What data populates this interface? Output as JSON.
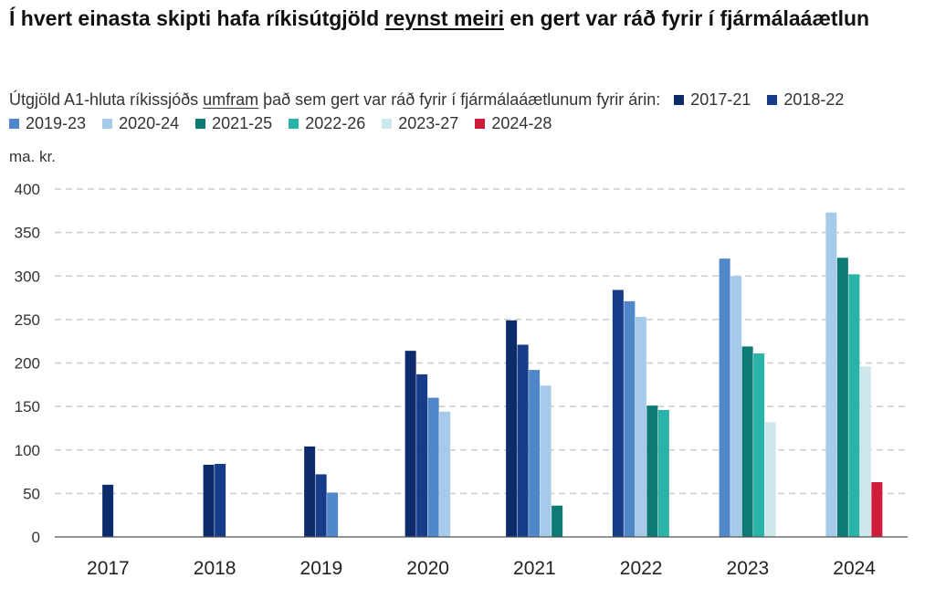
{
  "title": {
    "part1": "Í hvert einasta skipti hafa ríkisútgjöld ",
    "emph": "reynst meiri",
    "part2": " en gert var ráð fyrir í fjármálaáætlun"
  },
  "subtitle": {
    "part1": "Útgjöld A1-hluta ríkissjóðs ",
    "emph": "umfram",
    "part2": " það sem gert var ráð fyrir í fjármálaáætlunum fyrir árin:"
  },
  "chart_data": {
    "type": "bar",
    "unit_label": "ma. kr.",
    "categories": [
      "2017",
      "2018",
      "2019",
      "2020",
      "2021",
      "2022",
      "2023",
      "2024"
    ],
    "ylim": [
      0,
      400
    ],
    "yticks": [
      0,
      50,
      100,
      150,
      200,
      250,
      300,
      350,
      400
    ],
    "grid": true,
    "legend_position": "top",
    "series": [
      {
        "name": "2017-21",
        "color": "#0d2a6b",
        "values": [
          60,
          83,
          104,
          214,
          249,
          null,
          null,
          null
        ]
      },
      {
        "name": "2018-22",
        "color": "#173c8a",
        "values": [
          null,
          84,
          72,
          187,
          221,
          284,
          null,
          null
        ]
      },
      {
        "name": "2019-23",
        "color": "#4f87c8",
        "values": [
          null,
          null,
          51,
          160,
          192,
          271,
          320,
          null
        ]
      },
      {
        "name": "2020-24",
        "color": "#a6cbea",
        "values": [
          null,
          null,
          null,
          144,
          174,
          253,
          300,
          373
        ]
      },
      {
        "name": "2021-25",
        "color": "#0d7a73",
        "values": [
          null,
          null,
          null,
          null,
          36,
          151,
          219,
          321
        ]
      },
      {
        "name": "2022-26",
        "color": "#2ab3a9",
        "values": [
          null,
          null,
          null,
          null,
          null,
          146,
          211,
          302
        ]
      },
      {
        "name": "2023-27",
        "color": "#cde8ea",
        "values": [
          null,
          null,
          null,
          null,
          null,
          null,
          132,
          196
        ]
      },
      {
        "name": "2024-28",
        "color": "#d01c3c",
        "values": [
          null,
          null,
          null,
          null,
          null,
          null,
          null,
          63
        ]
      }
    ]
  }
}
